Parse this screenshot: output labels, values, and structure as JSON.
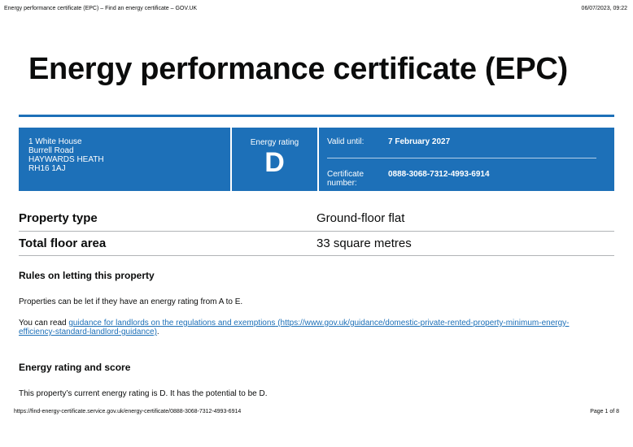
{
  "header": {
    "page_title": "Energy performance certificate (EPC) – Find an energy certificate – GOV.UK",
    "datetime": "06/07/2023, 09:22"
  },
  "title": "Energy performance certificate (EPC)",
  "summary": {
    "address": [
      "1 White House",
      "Burrell Road",
      "HAYWARDS HEATH",
      "RH16 1AJ"
    ],
    "rating_label": "Energy rating",
    "rating": "D",
    "valid_until_label": "Valid until:",
    "valid_until": "7 February 2027",
    "cert_label": "Certificate number:",
    "cert_number": "0888-3068-7312-4993-6914"
  },
  "details": [
    {
      "key": "Property type",
      "value": "Ground-floor flat"
    },
    {
      "key": "Total floor area",
      "value": "33 square metres"
    }
  ],
  "rules": {
    "heading": "Rules on letting this property",
    "para": "Properties can be let if they have an energy rating from A to E.",
    "read_prefix": "You can read ",
    "link_text": "guidance for landlords on the regulations and exemptions",
    "link_url": "(https://www.gov.uk/guidance/domestic-private-rented-property-minimum-energy-efficiency-standard-landlord-guidance)",
    "read_suffix": "."
  },
  "rating_section": {
    "heading": "Energy rating and score",
    "para": "This property’s current energy rating is D. It has the potential to be D."
  },
  "footer": {
    "url": "https://find-energy-certificate.service.gov.uk/energy-certificate/0888-3068-7312-4993-6914",
    "page": "Page 1 of 8"
  },
  "colors": {
    "brand_blue": "#1d70b8"
  }
}
